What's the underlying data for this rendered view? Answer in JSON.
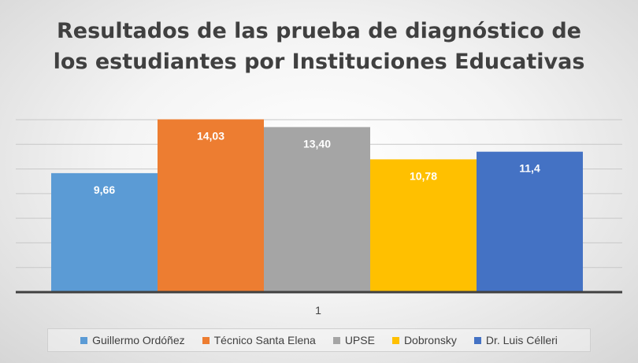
{
  "chart_data": {
    "type": "bar",
    "title": "Resultados  de las prueba de diagnóstico de\nlos estudiantes por  Instituciones Educativas",
    "categories": [
      "1"
    ],
    "series": [
      {
        "name": "Guillermo Ordóñez",
        "value": 9.66,
        "label": "9,66",
        "color": "#5b9bd5"
      },
      {
        "name": "Técnico Santa Elena",
        "value": 14.03,
        "label": "14,03",
        "color": "#ed7d31"
      },
      {
        "name": "UPSE",
        "value": 13.4,
        "label": "13,40",
        "color": "#a5a5a5"
      },
      {
        "name": "Dobronsky",
        "value": 10.78,
        "label": "10,78",
        "color": "#ffc000"
      },
      {
        "name": "Dr. Luis Célleri",
        "value": 11.4,
        "label": "11,4",
        "color": "#4472c4"
      }
    ],
    "ylim": [
      0,
      14
    ],
    "y_gridlines": 7,
    "grid": true,
    "legend_position": "bottom"
  }
}
